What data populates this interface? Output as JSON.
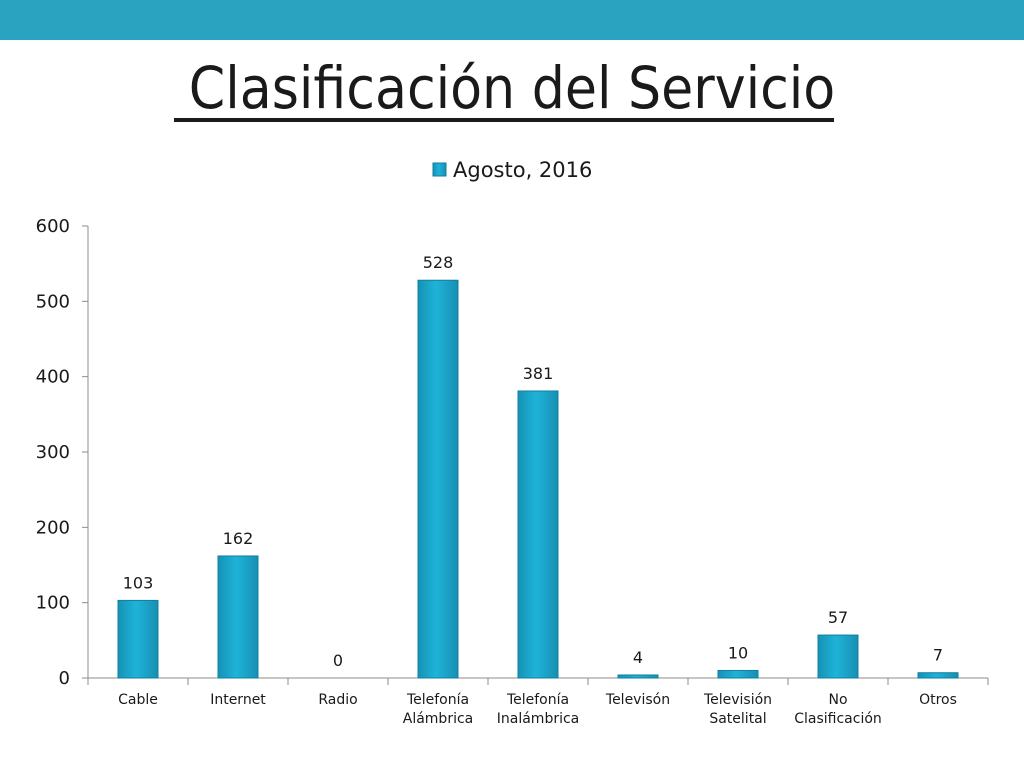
{
  "slide": {
    "title": "Clasificación del Servicio",
    "band_color": "#2aa3c1"
  },
  "chart_data": {
    "type": "bar",
    "title": "",
    "xlabel": "",
    "ylabel": "",
    "categories": [
      [
        "Cable"
      ],
      [
        "Internet"
      ],
      [
        "Radio"
      ],
      [
        "Telefonía",
        "Alámbrica"
      ],
      [
        "Telefonía",
        "Inalámbrica"
      ],
      [
        "Televisón"
      ],
      [
        "Televisión",
        "Satelital"
      ],
      [
        "No",
        "Clasificación"
      ],
      [
        "Otros"
      ]
    ],
    "series": [
      {
        "name": "Agosto, 2016",
        "color": "#1aa6cc",
        "values": [
          103,
          162,
          0,
          528,
          381,
          4,
          10,
          57,
          7
        ]
      }
    ],
    "ylim": [
      0,
      600
    ],
    "yticks": [
      0,
      100,
      200,
      300,
      400,
      500,
      600
    ],
    "grid": false,
    "legend_position": "top"
  }
}
